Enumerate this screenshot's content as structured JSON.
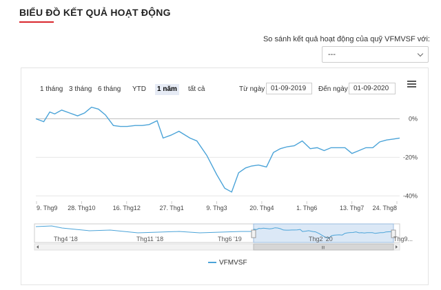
{
  "header": {
    "title": "BIỂU ĐỒ KẾT QUẢ HOẠT ĐỘNG"
  },
  "compare": {
    "label": "So sánh kết quả hoạt động của quỹ VFMVSF với:",
    "selected": "---"
  },
  "range_buttons": [
    {
      "label": "1 tháng",
      "active": false
    },
    {
      "label": "3 tháng",
      "active": false
    },
    {
      "label": "6 tháng",
      "active": false
    },
    {
      "label": "YTD",
      "active": false
    },
    {
      "label": "1 năm",
      "active": true
    },
    {
      "label": "tất cả",
      "active": false
    }
  ],
  "date_range": {
    "from_label": "Từ ngày",
    "from_value": "01-09-2019",
    "to_label": "Đến ngày",
    "to_value": "01-09-2020"
  },
  "colors": {
    "accent": "#d9252b",
    "series": "#4aa3d8",
    "navigator_fill": "#cfe0f3"
  },
  "icons": {
    "menu": "hamburger-icon"
  },
  "chart_data": {
    "type": "line",
    "series": [
      {
        "name": "VFMVSF",
        "x": [
          "2019-09-01",
          "2019-09-09",
          "2019-09-15",
          "2019-09-20",
          "2019-09-27",
          "2019-10-05",
          "2019-10-13",
          "2019-10-20",
          "2019-10-27",
          "2019-11-03",
          "2019-11-10",
          "2019-11-18",
          "2019-11-25",
          "2019-12-02",
          "2019-12-10",
          "2019-12-17",
          "2019-12-24",
          "2020-01-01",
          "2020-01-07",
          "2020-01-15",
          "2020-01-23",
          "2020-02-03",
          "2020-02-10",
          "2020-02-20",
          "2020-03-01",
          "2020-03-09",
          "2020-03-16",
          "2020-03-23",
          "2020-03-30",
          "2020-04-05",
          "2020-04-12",
          "2020-04-20",
          "2020-04-27",
          "2020-05-04",
          "2020-05-11",
          "2020-05-18",
          "2020-05-26",
          "2020-06-03",
          "2020-06-10",
          "2020-06-17",
          "2020-06-24",
          "2020-07-01",
          "2020-07-08",
          "2020-07-15",
          "2020-07-22",
          "2020-07-29",
          "2020-08-05",
          "2020-08-12",
          "2020-08-19",
          "2020-08-26",
          "2020-09-01"
        ],
        "values": [
          0,
          -1.5,
          3.5,
          2.5,
          4.5,
          3,
          1.5,
          3,
          6,
          5,
          2,
          -3.5,
          -4,
          -4,
          -3.5,
          -3.5,
          -3,
          -1,
          -10,
          -8.5,
          -6.5,
          -10,
          -11.5,
          -19,
          -29,
          -36,
          -38,
          -28,
          -25.5,
          -24.5,
          -24,
          -25,
          -17.5,
          -15.5,
          -14.5,
          -14,
          -11.5,
          -15.5,
          -15,
          -16.5,
          -15,
          -15,
          -15,
          -18,
          -16.5,
          -15,
          -15,
          -12,
          -11,
          -10.5,
          -10
        ]
      }
    ],
    "x_ticks": [
      "9. Thg9",
      "28. Thg10",
      "16. Thg12",
      "27. Thg1",
      "9. Thg3",
      "20. Thg4",
      "1. Thg6",
      "13. Thg7",
      "24. Thg8"
    ],
    "y_ticks": [
      "0%",
      "-20%",
      "-40%"
    ],
    "ylim": [
      -42,
      8
    ],
    "grid": true,
    "legend": "bottom-center",
    "navigator": {
      "labels": [
        "Thg4 '18",
        "Thg11 '18",
        "Thg6 '19",
        "Thg2 '20",
        "Thg9..."
      ],
      "scroll_label": "III"
    }
  }
}
